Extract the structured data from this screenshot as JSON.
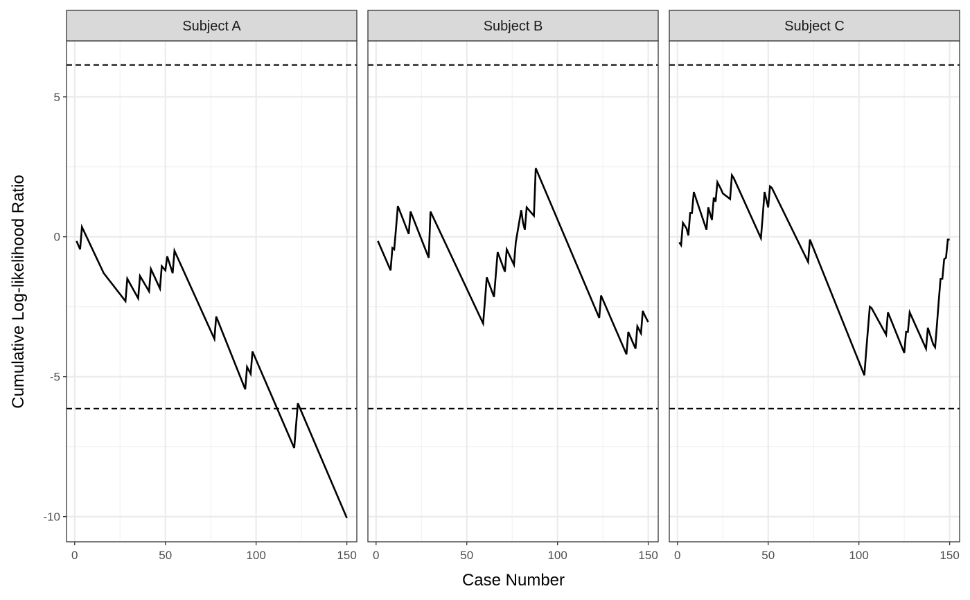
{
  "chart_data": {
    "type": "line",
    "xlabel": "Case Number",
    "ylabel": "Cumulative Log-likelihood Ratio",
    "xlim": [
      -4.5,
      155.5
    ],
    "ylim": [
      -10.9,
      7.0
    ],
    "x_ticks": [
      0,
      50,
      100,
      150
    ],
    "x_tick_labels": [
      "0",
      "50",
      "100",
      "150"
    ],
    "y_ticks": [
      5,
      0,
      -5,
      -10
    ],
    "y_tick_labels": [
      "5",
      "0",
      "-5",
      "-10"
    ],
    "y_minor_ticks": [
      7.5,
      2.5,
      -2.5,
      -7.5
    ],
    "x_minor_ticks": [
      25,
      75,
      125
    ],
    "grid": true,
    "reference_lines": [
      6.14,
      -6.14
    ],
    "reference_line_style": "dashed",
    "line_color": "#000000",
    "panels": [
      {
        "name": "Subject A",
        "x": [
          1,
          2,
          3,
          4,
          16,
          28,
          29,
          35,
          36,
          41,
          42,
          47,
          48,
          50,
          51,
          54,
          55,
          77,
          78,
          94,
          95,
          97,
          98,
          121,
          122,
          123,
          150
        ],
        "y": [
          -0.15,
          -0.3,
          -0.45,
          0.35,
          -1.3,
          -2.3,
          -1.5,
          -2.2,
          -1.4,
          -1.95,
          -1.15,
          -1.85,
          -1.05,
          -1.2,
          -0.7,
          -1.3,
          -0.5,
          -3.65,
          -2.85,
          -5.45,
          -4.65,
          -4.9,
          -4.1,
          -7.55,
          -6.75,
          -5.95,
          -10.05
        ]
      },
      {
        "name": "Subject B",
        "x": [
          1,
          8,
          9,
          10,
          11,
          12,
          18,
          19,
          29,
          30,
          59,
          60,
          61,
          65,
          66,
          67,
          71,
          72,
          76,
          77,
          80,
          81,
          82,
          83,
          87,
          88,
          123,
          124,
          138,
          139,
          143,
          144,
          146,
          147,
          148,
          150
        ],
        "y": [
          -0.15,
          -1.2,
          -0.4,
          -0.45,
          0.3,
          1.1,
          0.1,
          0.9,
          -0.75,
          0.9,
          -3.1,
          -2.3,
          -1.45,
          -2.15,
          -1.35,
          -0.55,
          -1.25,
          -0.45,
          -1.0,
          -0.2,
          0.95,
          0.5,
          0.25,
          1.05,
          0.75,
          2.45,
          -2.9,
          -2.1,
          -4.2,
          -3.4,
          -4.0,
          -3.2,
          -3.45,
          -2.65,
          -2.8,
          -3.05
        ]
      },
      {
        "name": "Subject C",
        "x": [
          1,
          2,
          3,
          5,
          6,
          7,
          8,
          9,
          16,
          17,
          19,
          20,
          21,
          22,
          24,
          25,
          29,
          30,
          31,
          46,
          47,
          48,
          50,
          51,
          52,
          72,
          73,
          103,
          104,
          105,
          106,
          107,
          115,
          116,
          125,
          126,
          127,
          128,
          137,
          138,
          141,
          142,
          143,
          144,
          145,
          146,
          147,
          148,
          149,
          150
        ],
        "y": [
          -0.2,
          -0.3,
          0.5,
          0.3,
          0.05,
          0.85,
          0.85,
          1.6,
          0.25,
          1.05,
          0.6,
          1.4,
          1.25,
          1.95,
          1.7,
          1.55,
          1.35,
          2.2,
          2.1,
          -0.05,
          0.75,
          1.6,
          1.05,
          1.8,
          1.75,
          -0.9,
          -0.1,
          -4.95,
          -4.1,
          -3.3,
          -2.5,
          -2.55,
          -3.5,
          -2.7,
          -4.15,
          -3.4,
          -3.4,
          -2.7,
          -4.0,
          -3.25,
          -3.85,
          -3.95,
          -3.15,
          -2.3,
          -1.5,
          -1.5,
          -0.8,
          -0.75,
          -0.1,
          -0.1
        ]
      }
    ]
  }
}
